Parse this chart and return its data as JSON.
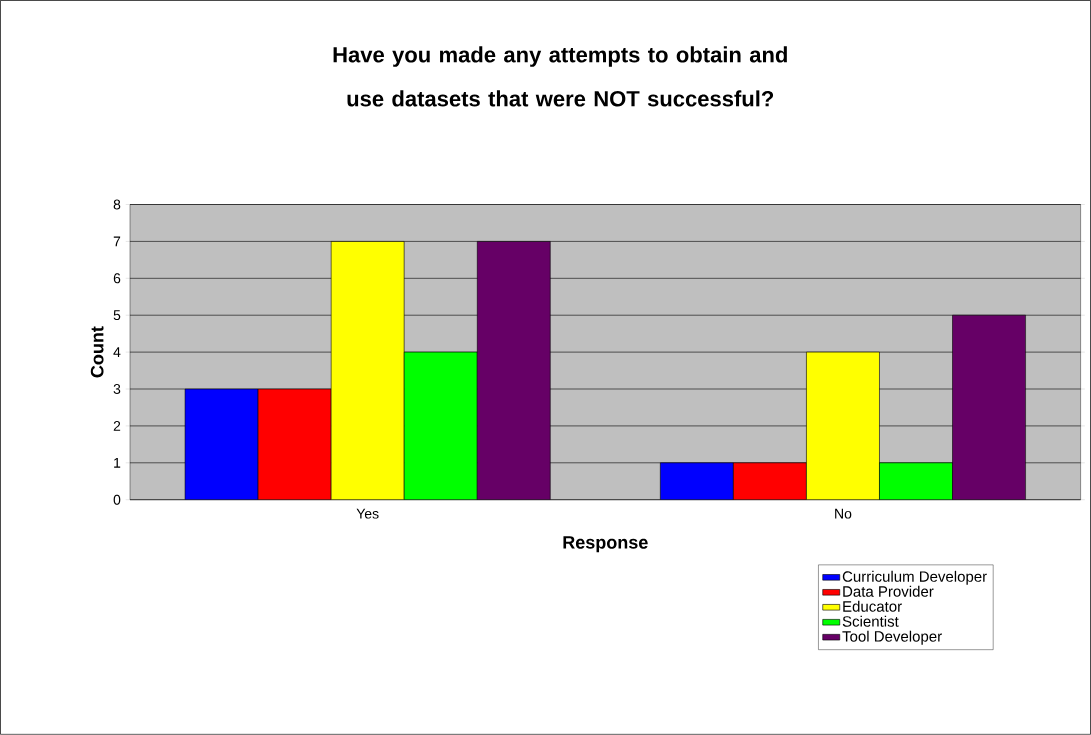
{
  "chart_data": {
    "type": "bar",
    "title": "Have you made any attempts to obtain and use datasets that were NOT successful?",
    "xlabel": "Response",
    "ylabel": "Count",
    "categories": [
      "Yes",
      "No"
    ],
    "series": [
      {
        "name": "Curriculum Developer",
        "color": "#0000ff",
        "values": [
          3,
          1
        ]
      },
      {
        "name": "Data Provider",
        "color": "#ff0000",
        "values": [
          3,
          1
        ]
      },
      {
        "name": "Educator",
        "color": "#ffff00",
        "values": [
          7,
          4
        ]
      },
      {
        "name": "Scientist",
        "color": "#00ff00",
        "values": [
          4,
          1
        ]
      },
      {
        "name": "Tool Developer",
        "color": "#660066",
        "values": [
          7,
          5
        ]
      }
    ],
    "ylim": [
      0,
      8
    ],
    "yticks": [
      0,
      1,
      2,
      3,
      4,
      5,
      6,
      7,
      8
    ],
    "grid": "y",
    "legend": "bottom right"
  }
}
